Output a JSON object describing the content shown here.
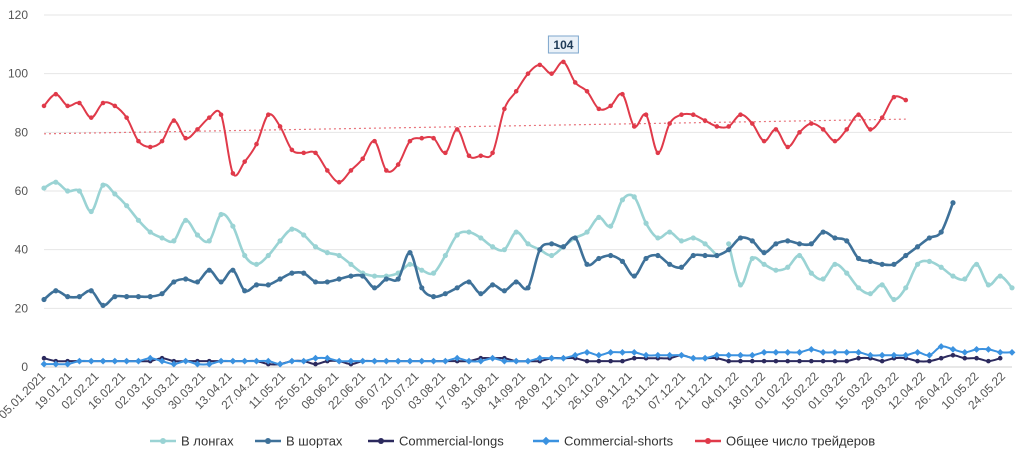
{
  "chart_data": {
    "type": "line",
    "title": "",
    "xlabel": "",
    "ylabel": "",
    "ylim": [
      0,
      120
    ],
    "yticks": [
      0,
      20,
      40,
      60,
      80,
      100,
      120
    ],
    "grid": true,
    "legend_position": "bottom",
    "xtick_labels": [
      "05.01.2021",
      "19.01.21",
      "02.02.21",
      "16.02.21",
      "02.03.21",
      "16.03.21",
      "30.03.21",
      "13.04.21",
      "27.04.21",
      "11.05.21",
      "25.05.21",
      "08.06.21",
      "22.06.21",
      "06.07.21",
      "20.07.21",
      "03.08.21",
      "17.08.21",
      "31.08.21",
      "14.09.21",
      "28.09.21",
      "12.10.21",
      "26.10.21",
      "09.11.21",
      "23.11.21",
      "07.12.21",
      "21.12.21",
      "04.01.22",
      "18.01.22",
      "01.02.22",
      "15.02.22",
      "01.03.22",
      "15.03.22",
      "29.03.22",
      "12.04.22",
      "26.04.22",
      "10.05.22",
      "24.05.22"
    ],
    "callout": {
      "label": "104",
      "series_index": 4,
      "point_index": 44
    },
    "trendline": {
      "series_index": 4,
      "start": 79.5,
      "end": 84.5,
      "color": "#e8747c"
    },
    "series": [
      {
        "name": "В лонгах",
        "color": "#9ad3d4",
        "values": [
          61,
          63,
          60,
          60,
          53,
          62,
          59,
          55,
          50,
          46,
          44,
          43,
          50,
          45,
          43,
          52,
          48,
          38,
          35,
          38,
          43,
          47,
          45,
          41,
          39,
          38,
          35,
          32,
          31,
          31,
          32,
          35,
          33,
          32,
          38,
          45,
          46,
          44,
          41,
          40,
          46,
          42,
          40,
          38,
          41,
          44,
          46,
          51,
          48,
          57,
          58,
          49,
          44,
          46,
          43,
          44,
          42,
          38,
          42,
          28,
          37,
          35,
          33,
          34,
          38,
          32,
          30,
          35,
          32,
          27,
          25,
          28,
          23,
          27,
          35,
          36,
          34,
          31,
          30,
          35,
          28,
          31,
          27
        ],
        "gaps": [
          [
            57,
            58
          ]
        ]
      },
      {
        "name": "В шортах",
        "color": "#3e7199",
        "values": [
          23,
          26,
          24,
          24,
          26,
          21,
          24,
          24,
          24,
          24,
          25,
          29,
          30,
          29,
          33,
          29,
          33,
          26,
          28,
          28,
          30,
          32,
          32,
          29,
          29,
          30,
          31,
          31,
          27,
          30,
          30,
          39,
          27,
          24,
          25,
          27,
          29,
          25,
          28,
          26,
          29,
          27,
          40,
          42,
          41,
          44,
          35,
          37,
          38,
          36,
          31,
          37,
          38,
          35,
          34,
          38,
          38,
          38,
          40,
          44,
          43,
          39,
          42,
          43,
          42,
          42,
          46,
          44,
          43,
          37,
          36,
          35,
          35,
          38,
          41,
          44,
          46,
          56
        ],
        "gaps": []
      },
      {
        "name": "Commercial-longs",
        "color": "#2c2a5e",
        "values": [
          3,
          2,
          2,
          2,
          2,
          2,
          2,
          2,
          2,
          2,
          3,
          2,
          2,
          2,
          2,
          2,
          2,
          2,
          2,
          1,
          1,
          2,
          2,
          1,
          2,
          2,
          1,
          2,
          2,
          2,
          2,
          2,
          2,
          2,
          2,
          2,
          2,
          3,
          3,
          3,
          2,
          2,
          2,
          3,
          3,
          3,
          2,
          2,
          2,
          2,
          3,
          3,
          3,
          3,
          4,
          3,
          3,
          3,
          2,
          2,
          2,
          2,
          2,
          2,
          2,
          2,
          2,
          2,
          2,
          3,
          3,
          2,
          3,
          3,
          2,
          2,
          3,
          4,
          3,
          3,
          2,
          3
        ],
        "gaps": []
      },
      {
        "name": "Commercial-shorts",
        "color": "#3b92e0",
        "values": [
          1,
          1,
          1,
          2,
          2,
          2,
          2,
          2,
          2,
          3,
          2,
          1,
          2,
          1,
          1,
          2,
          2,
          2,
          2,
          2,
          1,
          2,
          2,
          3,
          3,
          2,
          2,
          2,
          2,
          2,
          2,
          2,
          2,
          2,
          2,
          3,
          2,
          2,
          3,
          2,
          2,
          2,
          3,
          3,
          3,
          4,
          5,
          4,
          5,
          5,
          5,
          4,
          4,
          4,
          4,
          3,
          3,
          4,
          4,
          4,
          4,
          5,
          5,
          5,
          5,
          6,
          5,
          5,
          5,
          5,
          4,
          4,
          4,
          4,
          5,
          4,
          7,
          6,
          5,
          6,
          6,
          5,
          5
        ],
        "gaps": []
      },
      {
        "name": "Общее число трейдеров",
        "color": "#e03a4a",
        "values": [
          89,
          93,
          89,
          90,
          85,
          90,
          89,
          85,
          77,
          75,
          77,
          84,
          78,
          81,
          85,
          86,
          66,
          70,
          76,
          86,
          82,
          74,
          73,
          73,
          67,
          63,
          67,
          71,
          77,
          67,
          69,
          77,
          78,
          78,
          73,
          81,
          72,
          72,
          73,
          88,
          94,
          100,
          103,
          100,
          104,
          97,
          94,
          88,
          89,
          93,
          82,
          86,
          73,
          83,
          86,
          86,
          84,
          82,
          82,
          86,
          83,
          77,
          81,
          75,
          80,
          83,
          81,
          77,
          81,
          86,
          81,
          85,
          92,
          91
        ],
        "gaps": []
      }
    ]
  }
}
